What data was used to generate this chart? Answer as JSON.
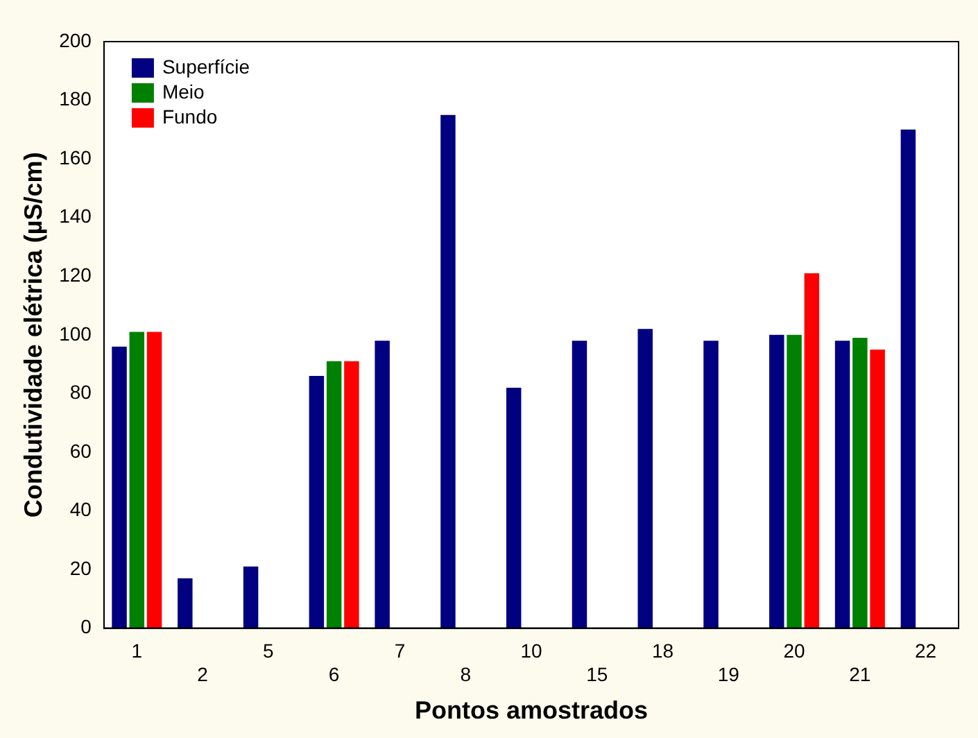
{
  "chart_data": {
    "type": "bar",
    "xlabel": "Pontos amostrados",
    "ylabel": "Condutividade elétrica (µS/cm)",
    "categories": [
      "1",
      "2",
      "5",
      "6",
      "7",
      "8",
      "10",
      "15",
      "18",
      "19",
      "20",
      "21",
      "22"
    ],
    "series": [
      {
        "name": "Superfície",
        "color": "#000080",
        "values": [
          96,
          17,
          21,
          86,
          98,
          175,
          82,
          98,
          102,
          98,
          100,
          98,
          170
        ]
      },
      {
        "name": "Meio",
        "color": "#008000",
        "values": [
          101,
          null,
          null,
          91,
          null,
          null,
          null,
          null,
          null,
          null,
          100,
          99,
          null
        ]
      },
      {
        "name": "Fundo",
        "color": "#ff0000",
        "values": [
          101,
          null,
          null,
          91,
          null,
          null,
          null,
          null,
          null,
          null,
          121,
          95,
          null
        ]
      }
    ],
    "ylim": [
      0,
      200
    ],
    "yticks": [
      0,
      20,
      40,
      60,
      80,
      100,
      120,
      140,
      160,
      180,
      200
    ],
    "grid": false,
    "legend": "top left"
  }
}
